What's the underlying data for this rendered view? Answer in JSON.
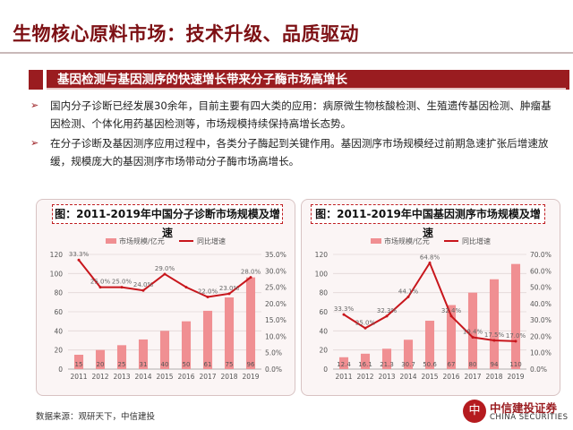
{
  "title": "生物核心原料市场：技术升级、品质驱动",
  "banner": "基因检测与基因测序的快速增长带来分子酶市场高增长",
  "bullets": [
    "国内分子诊断已经发展30余年，目前主要有四大类的应用：病原微生物核酸检测、生殖遗传基因检测、肿瘤基因检测、个体化用药基因检测等，市场规模持续保持高增长态势。",
    "在分子诊断及基因测序应用过程中，各类分子酶起到关键作用。基因测序市场规模经过前期急速扩张后增速放缓，规模庞大的基因测序市场带动分子酶市场高增长。"
  ],
  "source": "数据来源：观研天下，中信建投",
  "logo": {
    "seal": "中",
    "cn": "中信建投证券",
    "en": "CHINA SECURITIES"
  },
  "colors": {
    "bar": "#f08f92",
    "line": "#c8161c",
    "accent": "#9a1c20"
  },
  "chart_data": [
    {
      "type": "bar",
      "title": "图：2011-2019年中国分子诊断市场规模及增速",
      "categories": [
        "2011",
        "2012",
        "2013",
        "2014",
        "2015",
        "2016",
        "2017",
        "2018",
        "2019"
      ],
      "series": [
        {
          "name": "市场规模/亿元",
          "kind": "bar",
          "axis": "left",
          "values": [
            15,
            20,
            25,
            31,
            40,
            50,
            61,
            75,
            96
          ],
          "labels": [
            "15",
            "20",
            "25",
            "31",
            "40",
            "50",
            "61",
            "75",
            "96"
          ]
        },
        {
          "name": "同比增速",
          "kind": "line",
          "axis": "right",
          "values": [
            33.3,
            25.0,
            25.0,
            24.0,
            29.0,
            25.0,
            22.0,
            23.0,
            28.0
          ],
          "labels": [
            "33.3%",
            "25.0%",
            "25.0%",
            "24.0%",
            "29.0%",
            "25.0%",
            "22.0%",
            "23.0%",
            "28.0%"
          ],
          "show_labels": [
            true,
            true,
            true,
            true,
            true,
            false,
            true,
            true,
            true
          ]
        }
      ],
      "ylim_left": [
        0,
        120
      ],
      "yticks_left": [
        "0",
        "20",
        "40",
        "60",
        "80",
        "100",
        "120"
      ],
      "ylim_right": [
        0,
        35
      ],
      "yticks_right": [
        "0.0%",
        "5.0%",
        "10.0%",
        "15.0%",
        "20.0%",
        "25.0%",
        "30.0%",
        "35.0%"
      ],
      "legend": "top"
    },
    {
      "type": "bar",
      "title": "图：2011-2019年中国基因测序市场规模及增速",
      "categories": [
        "2011",
        "2012",
        "2013",
        "2014",
        "2015",
        "2016",
        "2017",
        "2018",
        "2019"
      ],
      "series": [
        {
          "name": "市场规模/亿元",
          "kind": "bar",
          "axis": "left",
          "values": [
            12.4,
            16.1,
            21.3,
            30.7,
            50.6,
            67.0,
            80.0,
            94.0,
            110.0
          ],
          "labels": [
            "12.4",
            "16.1",
            "21.3",
            "30.7",
            "50.6",
            "67",
            "80",
            "94",
            "110"
          ]
        },
        {
          "name": "同比增速",
          "kind": "line",
          "axis": "right",
          "values": [
            33.3,
            25.0,
            32.3,
            44.1,
            64.8,
            32.4,
            19.4,
            17.5,
            17.0
          ],
          "labels": [
            "33.3%",
            "25.0%",
            "32.3%",
            "44.1%",
            "64.8%",
            "32.4%",
            "19.4%",
            "17.5%",
            "17.0%"
          ],
          "show_labels": [
            true,
            true,
            true,
            true,
            true,
            true,
            true,
            true,
            true
          ]
        }
      ],
      "ylim_left": [
        0,
        120
      ],
      "yticks_left": [
        "0",
        "20",
        "40",
        "60",
        "80",
        "100",
        "120"
      ],
      "ylim_right": [
        0,
        70
      ],
      "yticks_right": [
        "0.0%",
        "10.0%",
        "20.0%",
        "30.0%",
        "40.0%",
        "50.0%",
        "60.0%",
        "70.0%"
      ],
      "legend": "top"
    }
  ]
}
